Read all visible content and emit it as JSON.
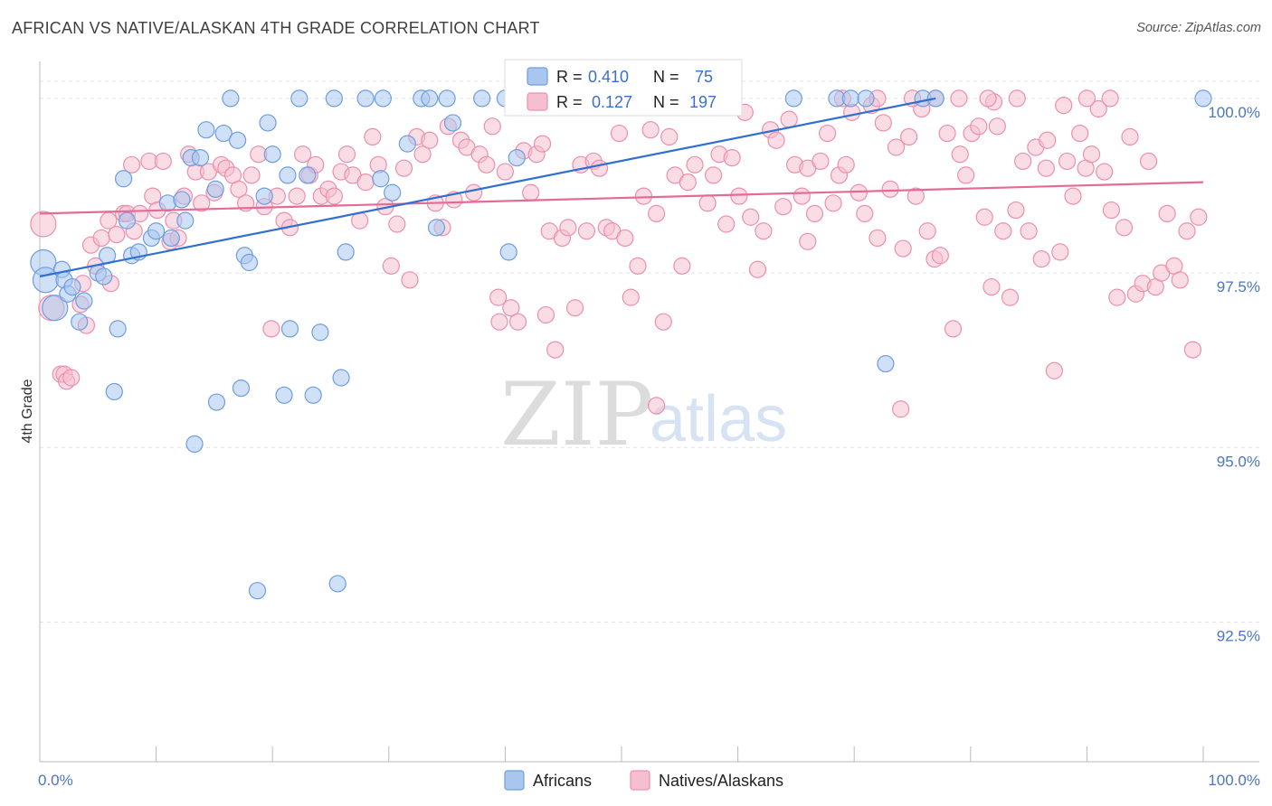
{
  "header": {
    "title": "AFRICAN VS NATIVE/ALASKAN 4TH GRADE CORRELATION CHART",
    "source": "Source: ZipAtlas.com"
  },
  "watermark": {
    "zip": "ZIP",
    "atlas": "atlas"
  },
  "colors": {
    "blue_fill": "#a9c6ee",
    "blue_stroke": "#6d9ee0",
    "blue_line": "#2f6fcf",
    "pink_fill": "#f6bfd0",
    "pink_stroke": "#ec8fae",
    "pink_line": "#e46b95",
    "grid": "#e2e2e2",
    "tick_text": "#4a76c4"
  },
  "legend_box": {
    "rows": [
      {
        "r_label": "R =",
        "r_value": "0.410",
        "n_label": "N =",
        "n_value": "75"
      },
      {
        "r_label": "R =",
        "r_value": "0.127",
        "n_label": "N =",
        "n_value": "197"
      }
    ]
  },
  "chart_data": {
    "type": "scatter",
    "title": "AFRICAN VS NATIVE/ALASKAN 4TH GRADE CORRELATION CHART",
    "xlabel": "",
    "ylabel": "4th Grade",
    "xlim": [
      0,
      100
    ],
    "ylim": [
      90.5,
      100.4
    ],
    "x_tick_labels": [
      "0.0%",
      "100.0%"
    ],
    "y_ticks": [
      92.5,
      95.0,
      97.5,
      100.0
    ],
    "y_tick_labels": [
      "92.5%",
      "95.0%",
      "97.5%",
      "100.0%"
    ],
    "grid": true,
    "legend_position": "bottom",
    "series": [
      {
        "name": "Africans",
        "color": "#a9c6ee",
        "r": 0.41,
        "n": 75,
        "trend": {
          "x": [
            0,
            77
          ],
          "y": [
            97.45,
            100.0
          ]
        },
        "points": [
          [
            0.3,
            97.65
          ],
          [
            0.5,
            97.4
          ],
          [
            1.3,
            97.0
          ],
          [
            1.9,
            97.55
          ],
          [
            2.1,
            97.4
          ],
          [
            2.4,
            97.2
          ],
          [
            2.8,
            97.3
          ],
          [
            3.4,
            96.8
          ],
          [
            3.8,
            97.1
          ],
          [
            5.0,
            97.5
          ],
          [
            5.5,
            97.45
          ],
          [
            5.8,
            97.75
          ],
          [
            6.4,
            95.8
          ],
          [
            6.7,
            96.7
          ],
          [
            7.2,
            98.85
          ],
          [
            7.5,
            98.25
          ],
          [
            7.9,
            97.75
          ],
          [
            8.5,
            97.8
          ],
          [
            9.6,
            98.0
          ],
          [
            10.0,
            98.1
          ],
          [
            11.0,
            98.5
          ],
          [
            11.3,
            98.0
          ],
          [
            12.2,
            98.55
          ],
          [
            12.5,
            98.25
          ],
          [
            13.0,
            99.15
          ],
          [
            13.3,
            95.05
          ],
          [
            13.8,
            99.15
          ],
          [
            14.3,
            99.55
          ],
          [
            15.1,
            98.7
          ],
          [
            15.2,
            95.65
          ],
          [
            15.8,
            99.5
          ],
          [
            16.4,
            100.0
          ],
          [
            17.0,
            99.4
          ],
          [
            17.3,
            95.85
          ],
          [
            17.6,
            97.75
          ],
          [
            18.0,
            97.65
          ],
          [
            18.7,
            92.95
          ],
          [
            19.3,
            98.6
          ],
          [
            19.6,
            99.65
          ],
          [
            20.0,
            99.2
          ],
          [
            21.0,
            95.75
          ],
          [
            21.3,
            98.9
          ],
          [
            21.5,
            96.7
          ],
          [
            22.3,
            100.0
          ],
          [
            23.0,
            98.9
          ],
          [
            23.5,
            95.75
          ],
          [
            24.1,
            96.65
          ],
          [
            25.3,
            100.0
          ],
          [
            25.6,
            93.05
          ],
          [
            25.9,
            96.0
          ],
          [
            26.3,
            97.8
          ],
          [
            28.0,
            100.0
          ],
          [
            29.3,
            98.85
          ],
          [
            29.5,
            100.0
          ],
          [
            30.3,
            98.65
          ],
          [
            31.6,
            99.35
          ],
          [
            32.8,
            100.0
          ],
          [
            33.5,
            100.0
          ],
          [
            34.1,
            98.15
          ],
          [
            35.0,
            100.0
          ],
          [
            35.5,
            99.65
          ],
          [
            38.0,
            100.0
          ],
          [
            40.0,
            100.0
          ],
          [
            40.3,
            97.8
          ],
          [
            41.0,
            99.15
          ],
          [
            42.2,
            100.0
          ],
          [
            45.0,
            100.0
          ],
          [
            64.8,
            100.0
          ],
          [
            68.5,
            100.0
          ],
          [
            69.7,
            100.0
          ],
          [
            71.0,
            100.0
          ],
          [
            72.7,
            96.2
          ],
          [
            75.9,
            100.0
          ],
          [
            77.0,
            100.0
          ],
          [
            100.0,
            100.0
          ]
        ]
      },
      {
        "name": "Natives/Alaskans",
        "color": "#f6bfd0",
        "r": 0.127,
        "n": 197,
        "trend": {
          "x": [
            0,
            100
          ],
          "y": [
            98.35,
            98.8
          ]
        },
        "points": [
          [
            0.3,
            98.2
          ],
          [
            1.0,
            97.0
          ],
          [
            1.8,
            96.05
          ],
          [
            2.1,
            96.05
          ],
          [
            2.3,
            95.95
          ],
          [
            2.7,
            96.0
          ],
          [
            3.5,
            97.05
          ],
          [
            3.7,
            97.35
          ],
          [
            4.0,
            96.75
          ],
          [
            4.4,
            97.9
          ],
          [
            4.8,
            97.6
          ],
          [
            5.3,
            98.0
          ],
          [
            5.9,
            98.25
          ],
          [
            6.1,
            97.35
          ],
          [
            6.6,
            98.05
          ],
          [
            7.2,
            98.35
          ],
          [
            7.5,
            98.35
          ],
          [
            7.9,
            99.05
          ],
          [
            8.1,
            98.1
          ],
          [
            8.6,
            98.35
          ],
          [
            9.4,
            99.1
          ],
          [
            9.7,
            98.6
          ],
          [
            10.1,
            98.4
          ],
          [
            10.6,
            99.1
          ],
          [
            11.2,
            97.95
          ],
          [
            11.5,
            98.25
          ],
          [
            11.9,
            98.0
          ],
          [
            12.4,
            98.6
          ],
          [
            12.8,
            99.2
          ],
          [
            13.4,
            98.95
          ],
          [
            13.9,
            98.5
          ],
          [
            14.5,
            98.95
          ],
          [
            15.0,
            98.65
          ],
          [
            15.6,
            99.05
          ],
          [
            16.0,
            99.0
          ],
          [
            16.6,
            98.9
          ],
          [
            17.1,
            98.7
          ],
          [
            17.7,
            98.5
          ],
          [
            18.2,
            98.9
          ],
          [
            18.8,
            99.2
          ],
          [
            19.3,
            98.45
          ],
          [
            19.9,
            96.7
          ],
          [
            20.4,
            98.6
          ],
          [
            21.0,
            98.25
          ],
          [
            21.5,
            98.15
          ],
          [
            22.1,
            98.6
          ],
          [
            22.6,
            99.2
          ],
          [
            23.2,
            98.9
          ],
          [
            23.7,
            99.05
          ],
          [
            24.2,
            98.6
          ],
          [
            24.8,
            98.7
          ],
          [
            25.3,
            98.6
          ],
          [
            25.9,
            98.95
          ],
          [
            26.4,
            99.2
          ],
          [
            26.9,
            98.9
          ],
          [
            27.5,
            98.25
          ],
          [
            28.0,
            98.8
          ],
          [
            28.6,
            99.45
          ],
          [
            29.1,
            99.05
          ],
          [
            29.7,
            98.45
          ],
          [
            30.2,
            97.6
          ],
          [
            30.7,
            98.2
          ],
          [
            31.3,
            99.0
          ],
          [
            31.8,
            97.4
          ],
          [
            32.4,
            99.45
          ],
          [
            32.9,
            99.2
          ],
          [
            33.5,
            99.4
          ],
          [
            34.0,
            98.5
          ],
          [
            34.6,
            98.15
          ],
          [
            35.1,
            99.6
          ],
          [
            35.6,
            98.55
          ],
          [
            36.2,
            99.4
          ],
          [
            36.7,
            99.3
          ],
          [
            37.3,
            98.65
          ],
          [
            37.8,
            99.2
          ],
          [
            38.4,
            99.05
          ],
          [
            38.9,
            99.6
          ],
          [
            39.4,
            97.15
          ],
          [
            40.0,
            98.95
          ],
          [
            40.5,
            97.0
          ],
          [
            41.1,
            96.8
          ],
          [
            41.6,
            99.25
          ],
          [
            42.2,
            98.65
          ],
          [
            42.7,
            99.2
          ],
          [
            43.2,
            99.35
          ],
          [
            43.8,
            98.1
          ],
          [
            44.3,
            96.4
          ],
          [
            44.9,
            98.0
          ],
          [
            45.4,
            98.15
          ],
          [
            46.0,
            97.0
          ],
          [
            46.5,
            99.05
          ],
          [
            47.0,
            98.1
          ],
          [
            47.6,
            99.1
          ],
          [
            48.1,
            99.0
          ],
          [
            48.7,
            98.15
          ],
          [
            49.2,
            98.1
          ],
          [
            49.8,
            99.5
          ],
          [
            50.3,
            98.0
          ],
          [
            50.8,
            97.15
          ],
          [
            51.4,
            97.6
          ],
          [
            51.9,
            98.6
          ],
          [
            52.5,
            99.55
          ],
          [
            53.0,
            98.35
          ],
          [
            53.6,
            96.8
          ],
          [
            54.1,
            99.45
          ],
          [
            54.6,
            98.9
          ],
          [
            55.2,
            97.6
          ],
          [
            55.7,
            98.8
          ],
          [
            56.3,
            99.05
          ],
          [
            56.8,
            99.9
          ],
          [
            57.4,
            98.5
          ],
          [
            57.9,
            98.9
          ],
          [
            58.4,
            99.2
          ],
          [
            59.0,
            98.2
          ],
          [
            59.5,
            99.15
          ],
          [
            60.1,
            98.6
          ],
          [
            60.6,
            99.8
          ],
          [
            61.1,
            98.3
          ],
          [
            61.7,
            97.55
          ],
          [
            62.2,
            98.1
          ],
          [
            62.8,
            99.55
          ],
          [
            63.3,
            99.4
          ],
          [
            63.9,
            98.45
          ],
          [
            64.4,
            99.7
          ],
          [
            64.9,
            99.05
          ],
          [
            65.5,
            98.6
          ],
          [
            66.0,
            99.0
          ],
          [
            66.6,
            98.35
          ],
          [
            67.1,
            99.1
          ],
          [
            67.7,
            99.5
          ],
          [
            68.2,
            98.5
          ],
          [
            68.7,
            98.9
          ],
          [
            69.3,
            99.05
          ],
          [
            69.8,
            99.8
          ],
          [
            70.4,
            98.65
          ],
          [
            70.9,
            98.35
          ],
          [
            71.5,
            99.9
          ],
          [
            72.0,
            98.0
          ],
          [
            72.5,
            99.65
          ],
          [
            73.1,
            98.7
          ],
          [
            73.6,
            99.3
          ],
          [
            74.2,
            97.85
          ],
          [
            74.7,
            99.45
          ],
          [
            75.3,
            98.6
          ],
          [
            75.8,
            99.85
          ],
          [
            76.3,
            98.1
          ],
          [
            76.9,
            97.7
          ],
          [
            77.4,
            97.75
          ],
          [
            78.0,
            99.5
          ],
          [
            78.5,
            96.7
          ],
          [
            79.1,
            99.2
          ],
          [
            79.6,
            98.9
          ],
          [
            80.1,
            99.5
          ],
          [
            80.7,
            99.6
          ],
          [
            81.2,
            98.3
          ],
          [
            81.8,
            97.3
          ],
          [
            82.3,
            99.6
          ],
          [
            82.8,
            98.1
          ],
          [
            83.4,
            97.15
          ],
          [
            83.9,
            98.4
          ],
          [
            84.5,
            99.1
          ],
          [
            85.0,
            98.1
          ],
          [
            85.6,
            99.3
          ],
          [
            86.1,
            97.7
          ],
          [
            86.6,
            99.4
          ],
          [
            87.2,
            96.1
          ],
          [
            87.7,
            97.8
          ],
          [
            88.3,
            99.1
          ],
          [
            88.8,
            98.6
          ],
          [
            89.4,
            99.5
          ],
          [
            89.9,
            99.0
          ],
          [
            90.4,
            99.2
          ],
          [
            91.0,
            99.85
          ],
          [
            91.5,
            98.95
          ],
          [
            92.1,
            98.4
          ],
          [
            92.6,
            97.15
          ],
          [
            93.2,
            98.15
          ],
          [
            93.7,
            99.45
          ],
          [
            94.2,
            97.2
          ],
          [
            94.8,
            97.35
          ],
          [
            95.3,
            99.1
          ],
          [
            95.9,
            97.3
          ],
          [
            96.4,
            97.5
          ],
          [
            96.9,
            98.35
          ],
          [
            97.5,
            97.6
          ],
          [
            98.0,
            97.4
          ],
          [
            98.6,
            98.1
          ],
          [
            99.1,
            96.4
          ],
          [
            99.6,
            98.3
          ],
          [
            74.0,
            95.55
          ],
          [
            53.0,
            95.6
          ],
          [
            39.5,
            96.8
          ],
          [
            43.5,
            96.9
          ],
          [
            66.0,
            97.95
          ],
          [
            82.0,
            99.95
          ],
          [
            84.0,
            100.0
          ],
          [
            86.5,
            99.0
          ],
          [
            88.0,
            99.9
          ],
          [
            90.0,
            100.0
          ],
          [
            92.0,
            100.0
          ],
          [
            69.0,
            100.0
          ],
          [
            72.0,
            100.0
          ],
          [
            75.0,
            100.0
          ],
          [
            77.0,
            100.0
          ],
          [
            79.0,
            100.0
          ],
          [
            81.5,
            100.0
          ]
        ]
      }
    ]
  },
  "legend": {
    "items": [
      {
        "label": "Africans"
      },
      {
        "label": "Natives/Alaskans"
      }
    ]
  }
}
